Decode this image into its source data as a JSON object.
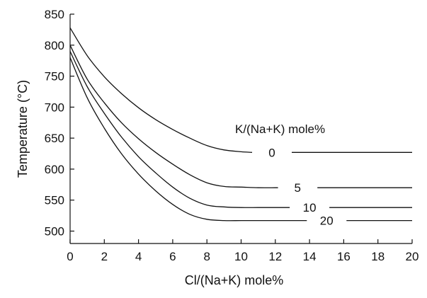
{
  "chart_data": {
    "type": "line",
    "title": "",
    "xlabel": "Cl/(Na+K) mole%",
    "ylabel": "Temperature (°C)",
    "xlim": [
      0,
      20
    ],
    "ylim": [
      480,
      850
    ],
    "xticks": [
      "0",
      "2",
      "4",
      "6",
      "8",
      "10",
      "12",
      "14",
      "16",
      "18",
      "20"
    ],
    "yticks": [
      "500",
      "550",
      "600",
      "650",
      "700",
      "750",
      "800",
      "850"
    ],
    "grid": false,
    "legend_title": "K/(Na+K) mole%",
    "series": [
      {
        "name": "0",
        "x": [
          0,
          1,
          2,
          3,
          4,
          5,
          6,
          7,
          8,
          9,
          10,
          11,
          12,
          13,
          14,
          16,
          18,
          20
        ],
        "y": [
          828,
          783,
          749,
          722,
          699,
          680,
          664,
          650,
          638,
          631,
          628,
          627,
          627,
          627,
          627,
          627,
          627,
          627
        ],
        "label_x": 11.8,
        "label_y": 627
      },
      {
        "name": "5",
        "x": [
          0,
          1,
          2,
          3,
          4,
          5,
          6,
          7,
          8,
          9,
          10,
          11,
          12,
          13,
          14,
          16,
          18,
          20
        ],
        "y": [
          800,
          745,
          707,
          675,
          649,
          627,
          608,
          591,
          578,
          572,
          571,
          570,
          570,
          570,
          570,
          570,
          570,
          570
        ],
        "label_x": 13.3,
        "label_y": 570
      },
      {
        "name": "10",
        "x": [
          0,
          1,
          2,
          3,
          4,
          5,
          6,
          7,
          8,
          9,
          10,
          11,
          12,
          13,
          14,
          16,
          18,
          20
        ],
        "y": [
          790,
          733,
          690,
          652,
          620,
          594,
          571,
          553,
          542,
          539,
          538,
          538,
          538,
          538,
          538,
          538,
          538,
          538
        ],
        "label_x": 14.0,
        "label_y": 538
      },
      {
        "name": "20",
        "x": [
          0,
          1,
          2,
          3,
          4,
          5,
          6,
          7,
          8,
          9,
          10,
          11,
          12,
          13,
          14,
          16,
          18,
          20
        ],
        "y": [
          780,
          715,
          666,
          625,
          592,
          565,
          543,
          527,
          519,
          517,
          517,
          517,
          517,
          517,
          517,
          517,
          517,
          517
        ],
        "label_x": 15.0,
        "label_y": 517
      }
    ]
  }
}
